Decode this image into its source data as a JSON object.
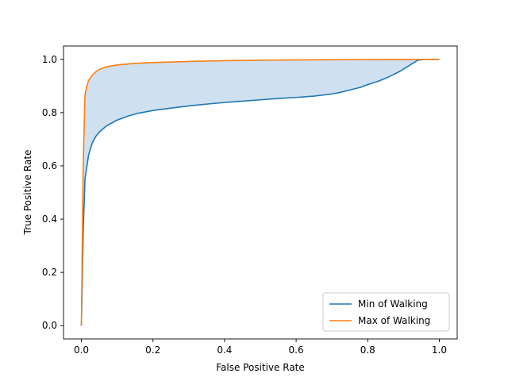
{
  "chart_data": {
    "type": "line",
    "title": "",
    "xlabel": "False Positive Rate",
    "ylabel": "True Positive Rate",
    "xlim": [
      -0.05,
      1.05
    ],
    "ylim": [
      -0.05,
      1.05
    ],
    "xticks": [
      "0.0",
      "0.2",
      "0.4",
      "0.6",
      "0.8",
      "1.0"
    ],
    "yticks": [
      "0.0",
      "0.2",
      "0.4",
      "0.6",
      "0.8",
      "1.0"
    ],
    "legend_position": "lower-right",
    "fill_between": {
      "series": [
        "Min of Walking",
        "Max of Walking"
      ],
      "color": "#cfe0f0"
    },
    "series": [
      {
        "name": "Min of Walking",
        "color": "#1f77b4",
        "x": [
          0,
          0.005,
          0.01,
          0.02,
          0.03,
          0.04,
          0.05,
          0.07,
          0.1,
          0.13,
          0.16,
          0.2,
          0.25,
          0.3,
          0.35,
          0.4,
          0.45,
          0.5,
          0.55,
          0.6,
          0.65,
          0.7,
          0.72,
          0.75,
          0.78,
          0.8,
          0.83,
          0.86,
          0.89,
          0.92,
          0.94,
          0.96,
          1.0
        ],
        "y": [
          0.0,
          0.35,
          0.55,
          0.64,
          0.685,
          0.71,
          0.727,
          0.75,
          0.772,
          0.787,
          0.798,
          0.808,
          0.817,
          0.825,
          0.832,
          0.838,
          0.843,
          0.848,
          0.853,
          0.857,
          0.862,
          0.87,
          0.875,
          0.885,
          0.895,
          0.905,
          0.918,
          0.935,
          0.955,
          0.98,
          0.997,
          1.0,
          1.0
        ]
      },
      {
        "name": "Max of Walking",
        "color": "#ff7f0e",
        "x": [
          0,
          0.005,
          0.01,
          0.015,
          0.02,
          0.03,
          0.04,
          0.05,
          0.07,
          0.1,
          0.15,
          0.2,
          0.3,
          0.4,
          0.5,
          0.6,
          0.8,
          1.0
        ],
        "y": [
          0.0,
          0.6,
          0.865,
          0.9,
          0.92,
          0.94,
          0.953,
          0.962,
          0.972,
          0.979,
          0.985,
          0.988,
          0.992,
          0.995,
          0.997,
          0.998,
          0.999,
          1.0
        ]
      }
    ]
  }
}
